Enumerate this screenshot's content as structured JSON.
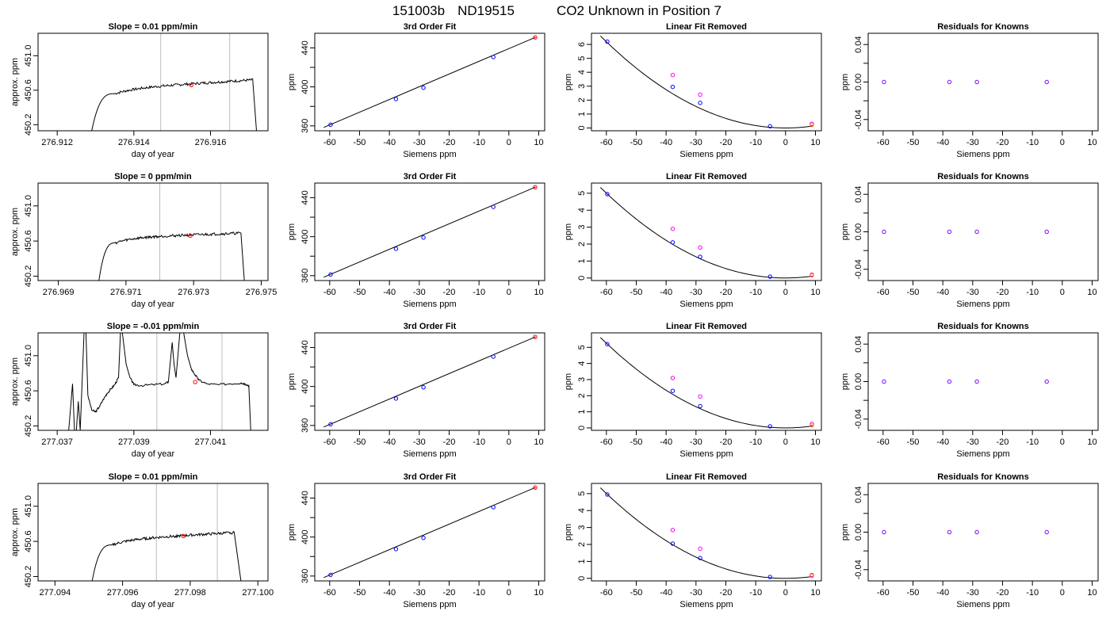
{
  "figure": {
    "title_parts": [
      "151003b",
      "ND19515",
      "CO2 Unknown in Position  7"
    ]
  },
  "colors": {
    "axis": "#000000",
    "grid_vline": "#bebebe",
    "known": "#0000ff",
    "unknown": "#ff0000",
    "linear_point": "#ff00ff",
    "residual": "#8000ff",
    "fit_unknown": "#ff8000"
  },
  "chart_data": [
    {
      "type": "line",
      "row": 0,
      "col": 0,
      "title": "Slope =  0.01  ppm/min",
      "xlabel": "day of year",
      "ylabel": "approx. ppm",
      "xlim": [
        276.9115,
        276.9175
      ],
      "ylim": [
        450.13,
        451.26
      ],
      "xticks": [
        "276.912",
        "276.914",
        "276.916"
      ],
      "xtick_values": [
        276.912,
        276.914,
        276.916
      ],
      "yticks": [
        "450.2",
        "450.6",
        "451.0"
      ],
      "ytick_values": [
        450.2,
        450.6,
        451.0
      ],
      "vlines": [
        276.9147,
        276.9165
      ],
      "marker": {
        "x": 276.9155,
        "y": 450.66
      },
      "profile": {
        "x_start": 276.9129,
        "x_rise_end": 276.9135,
        "x_end": 276.9171,
        "x_drop": 276.9172,
        "level_start": 450.62,
        "level_end": 450.72,
        "start_value": 450.13
      }
    },
    {
      "type": "scatter",
      "row": 0,
      "col": 1,
      "title": "3rd Order Fit",
      "xlabel": "Siemens ppm",
      "ylabel": "ppm",
      "xlim": [
        -65,
        12
      ],
      "ylim": [
        355,
        455
      ],
      "xticks": [
        "-60",
        "-50",
        "-40",
        "-30",
        "-20",
        "-10",
        "0",
        "10"
      ],
      "yticks": [
        "360",
        "400",
        "440"
      ],
      "ytick_values": [
        360,
        400,
        440
      ],
      "ytick_minor": [
        380,
        420
      ],
      "known_points": [
        {
          "x": -59.7,
          "y": 361.2
        },
        {
          "x": -37.8,
          "y": 387.6
        },
        {
          "x": -28.6,
          "y": 399.1
        },
        {
          "x": -5.2,
          "y": 430.6
        }
      ],
      "unknown_point": {
        "x": 8.8,
        "y": 450.8
      },
      "fit_line": {
        "x": [
          -62,
          9
        ],
        "y": [
          358.4,
          451.0
        ]
      }
    },
    {
      "type": "scatter",
      "row": 0,
      "col": 2,
      "title": "Linear Fit Removed",
      "xlabel": "Siemens ppm",
      "ylabel": "ppm",
      "xlim": [
        -65,
        12
      ],
      "ylim": [
        -0.2,
        6.8
      ],
      "xticks": [
        "-60",
        "-50",
        "-40",
        "-30",
        "-20",
        "-10",
        "0",
        "10"
      ],
      "yticks": [
        "0",
        "1",
        "2",
        "3",
        "4",
        "5",
        "6"
      ],
      "ytick_values": [
        0,
        1,
        2,
        3,
        4,
        5,
        6
      ],
      "fit_points": [
        {
          "x": -59.7,
          "y": 6.2
        },
        {
          "x": -37.8,
          "y": 2.95
        },
        {
          "x": -28.6,
          "y": 1.8
        },
        {
          "x": -5.2,
          "y": 0.12
        }
      ],
      "linear_points": [
        {
          "x": -37.8,
          "y": 3.8
        },
        {
          "x": -28.6,
          "y": 2.4
        },
        {
          "x": 8.8,
          "y": 0.3
        }
      ],
      "unknown_point": {
        "x": 8.8,
        "y": 0.22
      },
      "curve": {
        "vertex_x": 0,
        "vertex_y": 0,
        "a": 0.00172,
        "x_from": -62,
        "x_to": 9
      }
    },
    {
      "type": "scatter",
      "row": 0,
      "col": 3,
      "title": "Residuals for Knowns",
      "xlabel": "Siemens ppm",
      "ylabel": "ppm",
      "xlim": [
        -65,
        12
      ],
      "ylim": [
        -0.052,
        0.052
      ],
      "xticks": [
        "-60",
        "-50",
        "-40",
        "-30",
        "-20",
        "-10",
        "0",
        "10"
      ],
      "yticks": [
        "-0.04",
        "0.00",
        "0.04"
      ],
      "ytick_values": [
        -0.04,
        0.0,
        0.04
      ],
      "ytick_minor": [
        -0.02,
        0.02
      ],
      "points": [
        {
          "x": -59.7,
          "y": 0
        },
        {
          "x": -37.8,
          "y": 0
        },
        {
          "x": -28.6,
          "y": 0
        },
        {
          "x": -5.2,
          "y": 0
        }
      ]
    },
    {
      "type": "line",
      "row": 1,
      "col": 0,
      "title": "Slope =  0  ppm/min",
      "xlabel": "day of year",
      "ylabel": "approx. ppm",
      "xlim": [
        276.9684,
        276.9752
      ],
      "ylim": [
        450.15,
        451.26
      ],
      "xticks": [
        "276.969",
        "276.971",
        "276.973",
        "276.975"
      ],
      "xtick_values": [
        276.969,
        276.971,
        276.973,
        276.975
      ],
      "yticks": [
        "450.2",
        "450.6",
        "451.0"
      ],
      "ytick_values": [
        450.2,
        450.6,
        451.0
      ],
      "vlines": [
        276.972,
        276.9738
      ],
      "marker": {
        "x": 276.9729,
        "y": 450.66
      },
      "profile": {
        "x_start": 276.9702,
        "x_rise_end": 276.9707,
        "x_end": 276.9744,
        "x_drop": 276.9745,
        "level_start": 450.64,
        "level_end": 450.69,
        "start_value": 450.15
      }
    },
    {
      "type": "scatter",
      "row": 1,
      "col": 1,
      "title": "3rd Order Fit",
      "xlabel": "Siemens ppm",
      "ylabel": "ppm",
      "xlim": [
        -65,
        12
      ],
      "ylim": [
        355,
        455
      ],
      "xticks": [
        "-60",
        "-50",
        "-40",
        "-30",
        "-20",
        "-10",
        "0",
        "10"
      ],
      "yticks": [
        "360",
        "400",
        "440"
      ],
      "ytick_values": [
        360,
        400,
        440
      ],
      "ytick_minor": [
        380,
        420
      ],
      "known_points": [
        {
          "x": -59.7,
          "y": 361.2
        },
        {
          "x": -37.8,
          "y": 387.6
        },
        {
          "x": -28.6,
          "y": 399.1
        },
        {
          "x": -5.2,
          "y": 430.6
        }
      ],
      "unknown_point": {
        "x": 8.8,
        "y": 450.8
      },
      "fit_line": {
        "x": [
          -62,
          9
        ],
        "y": [
          358.4,
          451.0
        ]
      }
    },
    {
      "type": "scatter",
      "row": 1,
      "col": 2,
      "title": "Linear Fit Removed",
      "xlabel": "Siemens ppm",
      "ylabel": "ppm",
      "xlim": [
        -65,
        12
      ],
      "ylim": [
        -0.15,
        5.6
      ],
      "xticks": [
        "-60",
        "-50",
        "-40",
        "-30",
        "-20",
        "-10",
        "0",
        "10"
      ],
      "yticks": [
        "0",
        "1",
        "2",
        "3",
        "4",
        "5"
      ],
      "ytick_values": [
        0,
        1,
        2,
        3,
        4,
        5
      ],
      "fit_points": [
        {
          "x": -59.7,
          "y": 4.95
        },
        {
          "x": -37.8,
          "y": 2.1
        },
        {
          "x": -28.6,
          "y": 1.25
        },
        {
          "x": -5.2,
          "y": 0.08
        }
      ],
      "linear_points": [
        {
          "x": -37.8,
          "y": 2.9
        },
        {
          "x": -28.6,
          "y": 1.8
        },
        {
          "x": 8.8,
          "y": 0.2
        }
      ],
      "unknown_point": {
        "x": 8.8,
        "y": 0.15
      },
      "curve": {
        "vertex_x": 0,
        "vertex_y": 0,
        "a": 0.00139,
        "x_from": -62,
        "x_to": 9
      }
    },
    {
      "type": "scatter",
      "row": 1,
      "col": 3,
      "title": "Residuals for Knowns",
      "xlabel": "Siemens ppm",
      "ylabel": "ppm",
      "xlim": [
        -65,
        12
      ],
      "ylim": [
        -0.052,
        0.052
      ],
      "xticks": [
        "-60",
        "-50",
        "-40",
        "-30",
        "-20",
        "-10",
        "0",
        "10"
      ],
      "yticks": [
        "-0.04",
        "0.00",
        "0.04"
      ],
      "ytick_values": [
        -0.04,
        0.0,
        0.04
      ],
      "ytick_minor": [
        -0.02,
        0.02
      ],
      "points": [
        {
          "x": -59.7,
          "y": 0
        },
        {
          "x": -37.8,
          "y": 0
        },
        {
          "x": -28.6,
          "y": 0
        },
        {
          "x": -5.2,
          "y": 0
        }
      ]
    },
    {
      "type": "line",
      "row": 2,
      "col": 0,
      "title": "Slope =  -0.01  ppm/min",
      "xlabel": "day of year",
      "ylabel": "approx. ppm",
      "xlim": [
        277.0365,
        277.0425
      ],
      "ylim": [
        450.15,
        451.26
      ],
      "xticks": [
        "277.037",
        "277.039",
        "277.041"
      ],
      "xtick_values": [
        277.037,
        277.039,
        277.041
      ],
      "yticks": [
        "450.2",
        "450.6",
        "451.0"
      ],
      "ytick_values": [
        450.2,
        450.6,
        451.0
      ],
      "vlines": [
        277.0396,
        277.0413
      ],
      "marker": {
        "x": 277.0406,
        "y": 450.7
      },
      "profile_noisy": [
        [
          277.0373,
          450.15
        ],
        [
          277.0374,
          450.68
        ],
        [
          277.03745,
          450.15
        ],
        [
          277.0375,
          450.15
        ],
        [
          277.03755,
          450.48
        ],
        [
          277.0376,
          450.15
        ],
        [
          277.0377,
          451.26
        ],
        [
          277.03775,
          451.26
        ],
        [
          277.0378,
          450.55
        ],
        [
          277.0379,
          450.38
        ],
        [
          277.038,
          450.36
        ],
        [
          277.0381,
          450.42
        ],
        [
          277.0382,
          450.5
        ],
        [
          277.0383,
          450.57
        ],
        [
          277.0384,
          450.62
        ],
        [
          277.0385,
          450.67
        ],
        [
          277.0386,
          450.75
        ],
        [
          277.03865,
          451.26
        ],
        [
          277.0387,
          451.26
        ],
        [
          277.0388,
          450.9
        ],
        [
          277.0389,
          450.75
        ],
        [
          277.039,
          450.67
        ],
        [
          277.0392,
          450.66
        ],
        [
          277.0395,
          450.67
        ],
        [
          277.0398,
          450.68
        ],
        [
          277.0399,
          450.7
        ],
        [
          277.04,
          451.15
        ],
        [
          277.04005,
          450.9
        ],
        [
          277.0401,
          450.75
        ],
        [
          277.0402,
          451.26
        ],
        [
          277.0403,
          451.26
        ],
        [
          277.0404,
          451.0
        ],
        [
          277.0405,
          450.85
        ],
        [
          277.0406,
          450.78
        ],
        [
          277.0407,
          450.72
        ],
        [
          277.0409,
          450.68
        ],
        [
          277.0412,
          450.67
        ],
        [
          277.0415,
          450.68
        ],
        [
          277.0418,
          450.69
        ],
        [
          277.0419,
          450.68
        ],
        [
          277.042,
          450.66
        ],
        [
          277.04205,
          450.15
        ]
      ]
    },
    {
      "type": "scatter",
      "row": 2,
      "col": 1,
      "title": "3rd Order Fit",
      "xlabel": "Siemens ppm",
      "ylabel": "ppm",
      "xlim": [
        -65,
        12
      ],
      "ylim": [
        355,
        455
      ],
      "xticks": [
        "-60",
        "-50",
        "-40",
        "-30",
        "-20",
        "-10",
        "0",
        "10"
      ],
      "yticks": [
        "360",
        "400",
        "440"
      ],
      "ytick_values": [
        360,
        400,
        440
      ],
      "ytick_minor": [
        380,
        420
      ],
      "known_points": [
        {
          "x": -59.7,
          "y": 361.2
        },
        {
          "x": -37.8,
          "y": 387.6
        },
        {
          "x": -28.6,
          "y": 399.1
        },
        {
          "x": -5.2,
          "y": 430.6
        }
      ],
      "unknown_point": {
        "x": 8.8,
        "y": 450.8
      },
      "fit_line": {
        "x": [
          -62,
          9
        ],
        "y": [
          358.4,
          451.0
        ]
      }
    },
    {
      "type": "scatter",
      "row": 2,
      "col": 2,
      "title": "Linear Fit Removed",
      "xlabel": "Siemens ppm",
      "ylabel": "ppm",
      "xlim": [
        -65,
        12
      ],
      "ylim": [
        -0.15,
        5.9
      ],
      "xticks": [
        "-60",
        "-50",
        "-40",
        "-30",
        "-20",
        "-10",
        "0",
        "10"
      ],
      "yticks": [
        "0",
        "1",
        "2",
        "3",
        "4",
        "5"
      ],
      "ytick_values": [
        0,
        1,
        2,
        3,
        4,
        5
      ],
      "fit_points": [
        {
          "x": -59.7,
          "y": 5.2
        },
        {
          "x": -37.8,
          "y": 2.3
        },
        {
          "x": -28.6,
          "y": 1.35
        },
        {
          "x": -5.2,
          "y": 0.1
        }
      ],
      "linear_points": [
        {
          "x": -37.8,
          "y": 3.1
        },
        {
          "x": -28.6,
          "y": 1.95
        },
        {
          "x": 8.8,
          "y": 0.25
        }
      ],
      "unknown_point": {
        "x": 8.8,
        "y": 0.16
      },
      "curve": {
        "vertex_x": 0,
        "vertex_y": 0,
        "a": 0.00146,
        "x_from": -62,
        "x_to": 9
      }
    },
    {
      "type": "scatter",
      "row": 2,
      "col": 3,
      "title": "Residuals for Knowns",
      "xlabel": "Siemens ppm",
      "ylabel": "ppm",
      "xlim": [
        -65,
        12
      ],
      "ylim": [
        -0.052,
        0.052
      ],
      "xticks": [
        "-60",
        "-50",
        "-40",
        "-30",
        "-20",
        "-10",
        "0",
        "10"
      ],
      "yticks": [
        "-0.04",
        "0.00",
        "0.04"
      ],
      "ytick_values": [
        -0.04,
        0.0,
        0.04
      ],
      "ytick_minor": [
        -0.02,
        0.02
      ],
      "points": [
        {
          "x": -59.7,
          "y": 0
        },
        {
          "x": -37.8,
          "y": 0
        },
        {
          "x": -28.6,
          "y": 0
        },
        {
          "x": -5.2,
          "y": 0
        }
      ]
    },
    {
      "type": "line",
      "row": 3,
      "col": 0,
      "title": "Slope =  0.01  ppm/min",
      "xlabel": "day of year",
      "ylabel": "approx. ppm",
      "xlim": [
        277.0935,
        277.1003
      ],
      "ylim": [
        450.15,
        451.26
      ],
      "xticks": [
        "277.094",
        "277.096",
        "277.098",
        "277.100"
      ],
      "xtick_values": [
        277.094,
        277.096,
        277.098,
        277.1
      ],
      "yticks": [
        "450.2",
        "450.6",
        "451.0"
      ],
      "ytick_values": [
        450.2,
        450.6,
        451.0
      ],
      "vlines": [
        277.097,
        277.0988
      ],
      "marker": {
        "x": 277.0978,
        "y": 450.66
      },
      "profile": {
        "x_start": 277.0951,
        "x_rise_end": 277.0957,
        "x_end": 277.0993,
        "x_drop": 277.0995,
        "level_start": 450.62,
        "level_end": 450.7,
        "start_value": 450.15
      }
    },
    {
      "type": "scatter",
      "row": 3,
      "col": 1,
      "title": "3rd Order Fit",
      "xlabel": "Siemens ppm",
      "ylabel": "ppm",
      "xlim": [
        -65,
        12
      ],
      "ylim": [
        355,
        455
      ],
      "xticks": [
        "-60",
        "-50",
        "-40",
        "-30",
        "-20",
        "-10",
        "0",
        "10"
      ],
      "yticks": [
        "360",
        "400",
        "440"
      ],
      "ytick_values": [
        360,
        400,
        440
      ],
      "ytick_minor": [
        380,
        420
      ],
      "known_points": [
        {
          "x": -59.7,
          "y": 361.2
        },
        {
          "x": -37.8,
          "y": 387.6
        },
        {
          "x": -28.6,
          "y": 399.1
        },
        {
          "x": -5.2,
          "y": 430.6
        }
      ],
      "unknown_point": {
        "x": 8.8,
        "y": 450.8
      },
      "fit_line": {
        "x": [
          -62,
          9
        ],
        "y": [
          358.4,
          451.0
        ]
      }
    },
    {
      "type": "scatter",
      "row": 3,
      "col": 2,
      "title": "Linear Fit Removed",
      "xlabel": "Siemens ppm",
      "ylabel": "ppm",
      "xlim": [
        -65,
        12
      ],
      "ylim": [
        -0.15,
        5.6
      ],
      "xticks": [
        "-60",
        "-50",
        "-40",
        "-30",
        "-20",
        "-10",
        "0",
        "10"
      ],
      "yticks": [
        "0",
        "1",
        "2",
        "3",
        "4",
        "5"
      ],
      "ytick_values": [
        0,
        1,
        2,
        3,
        4,
        5
      ],
      "fit_points": [
        {
          "x": -59.7,
          "y": 4.95
        },
        {
          "x": -37.8,
          "y": 2.05
        },
        {
          "x": -28.6,
          "y": 1.2
        },
        {
          "x": -5.2,
          "y": 0.08
        }
      ],
      "linear_points": [
        {
          "x": -37.8,
          "y": 2.85
        },
        {
          "x": -28.6,
          "y": 1.75
        },
        {
          "x": 8.8,
          "y": 0.2
        }
      ],
      "unknown_point": {
        "x": 8.8,
        "y": 0.14
      },
      "curve": {
        "vertex_x": 0,
        "vertex_y": 0,
        "a": 0.00139,
        "x_from": -62,
        "x_to": 9
      }
    },
    {
      "type": "scatter",
      "row": 3,
      "col": 3,
      "title": "Residuals for Knowns",
      "xlabel": "Siemens ppm",
      "ylabel": "ppm",
      "xlim": [
        -65,
        12
      ],
      "ylim": [
        -0.052,
        0.052
      ],
      "xticks": [
        "-60",
        "-50",
        "-40",
        "-30",
        "-20",
        "-10",
        "0",
        "10"
      ],
      "yticks": [
        "-0.04",
        "0.00",
        "0.04"
      ],
      "ytick_values": [
        -0.04,
        0.0,
        0.04
      ],
      "ytick_minor": [
        -0.02,
        0.02
      ],
      "points": [
        {
          "x": -59.7,
          "y": 0
        },
        {
          "x": -37.8,
          "y": 0
        },
        {
          "x": -28.6,
          "y": 0
        },
        {
          "x": -5.2,
          "y": 0
        }
      ]
    }
  ]
}
